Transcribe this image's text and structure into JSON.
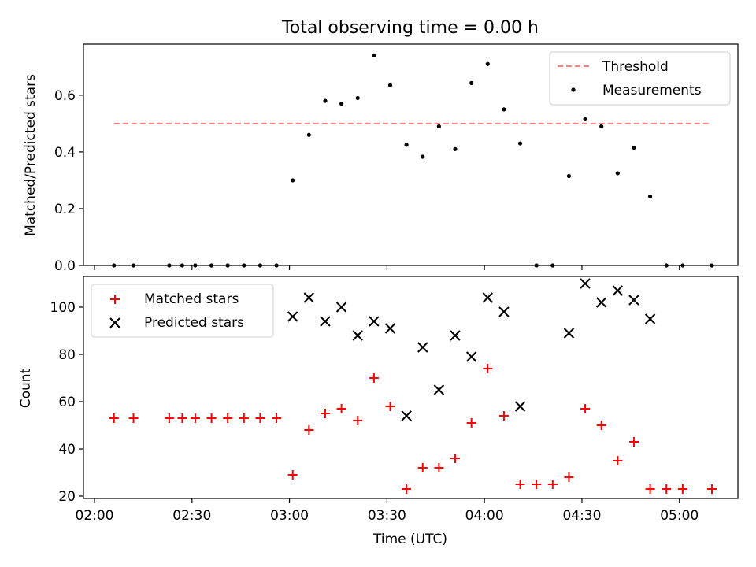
{
  "chart_data": [
    {
      "type": "scatter",
      "title": "Total observing time = 0.00 h",
      "ylabel": "Matched/Predicted stars",
      "xlim": [
        "02:00",
        "05:10"
      ],
      "ylim": [
        0,
        0.78
      ],
      "yticks": [
        "0.0",
        "0.2",
        "0.4",
        "0.6"
      ],
      "legend_position": "top-right",
      "series": [
        {
          "name": "Threshold",
          "kind": "dashed-line",
          "color": "#ff7f7f",
          "x": [
            "02:06",
            "05:09"
          ],
          "y": [
            0.5,
            0.5
          ]
        },
        {
          "name": "Measurements",
          "kind": "dot",
          "color": "#000000",
          "x": [
            "02:06",
            "02:12",
            "02:23",
            "02:27",
            "02:31",
            "02:36",
            "02:41",
            "02:46",
            "02:51",
            "02:56",
            "03:01",
            "03:06",
            "03:11",
            "03:16",
            "03:21",
            "03:26",
            "03:31",
            "03:36",
            "03:41",
            "03:46",
            "03:51",
            "03:56",
            "04:01",
            "04:06",
            "04:11",
            "04:16",
            "04:21",
            "04:26",
            "04:31",
            "04:36",
            "04:41",
            "04:46",
            "04:51",
            "04:56",
            "05:01",
            "05:10"
          ],
          "y": [
            0,
            0,
            0,
            0,
            0,
            0,
            0,
            0,
            0,
            0,
            0.3,
            0.46,
            0.58,
            0.57,
            0.59,
            0.74,
            0.635,
            0.425,
            0.383,
            0.49,
            0.41,
            0.643,
            0.71,
            0.55,
            0.43,
            0,
            0,
            0.315,
            0.515,
            0.49,
            0.325,
            0.415,
            0.243,
            0,
            0,
            0
          ]
        }
      ]
    },
    {
      "type": "scatter",
      "xlabel": "Time (UTC)",
      "ylabel": "Count",
      "xlim": [
        "02:00",
        "05:10"
      ],
      "ylim": [
        19,
        113
      ],
      "xticks": [
        "02:00",
        "02:30",
        "03:00",
        "03:30",
        "04:00",
        "04:30",
        "05:00"
      ],
      "yticks": [
        "20",
        "40",
        "60",
        "80",
        "100"
      ],
      "legend_position": "top-left",
      "series": [
        {
          "name": "Matched stars",
          "marker": "plus",
          "color": "#ff0000",
          "x": [
            "02:06",
            "02:12",
            "02:23",
            "02:27",
            "02:31",
            "02:36",
            "02:41",
            "02:46",
            "02:51",
            "02:56",
            "03:01",
            "03:06",
            "03:11",
            "03:16",
            "03:21",
            "03:26",
            "03:31",
            "03:36",
            "03:41",
            "03:46",
            "03:51",
            "03:56",
            "04:01",
            "04:06",
            "04:11",
            "04:16",
            "04:21",
            "04:26",
            "04:31",
            "04:36",
            "04:41",
            "04:46",
            "04:51",
            "04:56",
            "05:01",
            "05:10"
          ],
          "y": [
            53,
            53,
            53,
            53,
            53,
            53,
            53,
            53,
            53,
            53,
            29,
            48,
            55,
            57,
            52,
            70,
            58,
            23,
            32,
            32,
            36,
            51,
            74,
            54,
            25,
            25,
            25,
            28,
            57,
            50,
            35,
            43,
            23,
            23,
            23,
            23
          ]
        },
        {
          "name": "Predicted stars",
          "marker": "x",
          "color": "#000000",
          "x": [
            "03:01",
            "03:06",
            "03:11",
            "03:16",
            "03:21",
            "03:26",
            "03:31",
            "03:36",
            "03:41",
            "03:46",
            "03:51",
            "03:56",
            "04:01",
            "04:06",
            "04:11",
            "04:26",
            "04:31",
            "04:36",
            "04:41",
            "04:46",
            "04:51"
          ],
          "y": [
            96,
            104,
            94,
            100,
            88,
            94,
            91,
            54,
            83,
            65,
            88,
            79,
            104,
            98,
            58,
            89,
            110,
            102,
            107,
            103,
            95
          ]
        }
      ]
    }
  ]
}
